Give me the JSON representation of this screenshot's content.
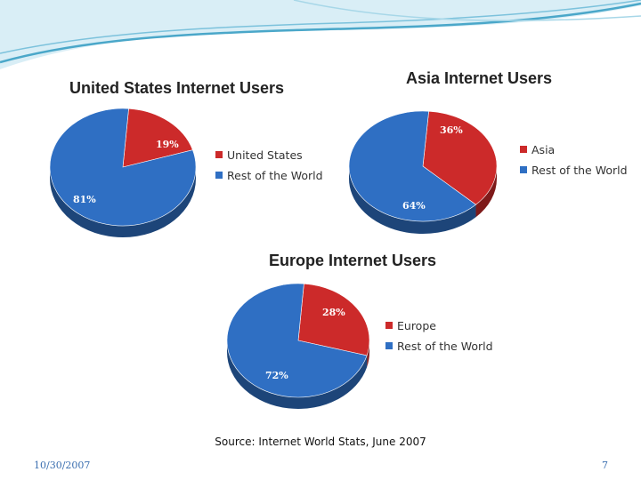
{
  "slide": {
    "source": "Source: Internet World Stats, June 2007",
    "date": "10/30/2007",
    "page_number": "7"
  },
  "colors": {
    "red": "#cc2a2a",
    "red_dark": "#8f1c1c",
    "blue": "#2f6fc3",
    "blue_dark": "#1d4a8c",
    "accent_wave": "#4aa7c9"
  },
  "chart_data": [
    {
      "id": "us",
      "type": "pie",
      "title": "United States Internet Users",
      "slices": [
        {
          "label": "United States",
          "value": 19,
          "display": "19%",
          "color": "#cc2a2a"
        },
        {
          "label": "Rest of the World",
          "value": 81,
          "display": "81%",
          "color": "#2f6fc3"
        }
      ],
      "legend": "right"
    },
    {
      "id": "asia",
      "type": "pie",
      "title": "Asia Internet Users",
      "slices": [
        {
          "label": "Asia",
          "value": 36,
          "display": "36%",
          "color": "#cc2a2a"
        },
        {
          "label": "Rest of the World",
          "value": 64,
          "display": "64%",
          "color": "#2f6fc3"
        }
      ],
      "legend": "right"
    },
    {
      "id": "europe",
      "type": "pie",
      "title": "Europe Internet Users",
      "slices": [
        {
          "label": "Europe",
          "value": 28,
          "display": "28%",
          "color": "#cc2a2a"
        },
        {
          "label": "Rest of the World",
          "value": 72,
          "display": "72%",
          "color": "#2f6fc3"
        }
      ],
      "legend": "right"
    }
  ]
}
